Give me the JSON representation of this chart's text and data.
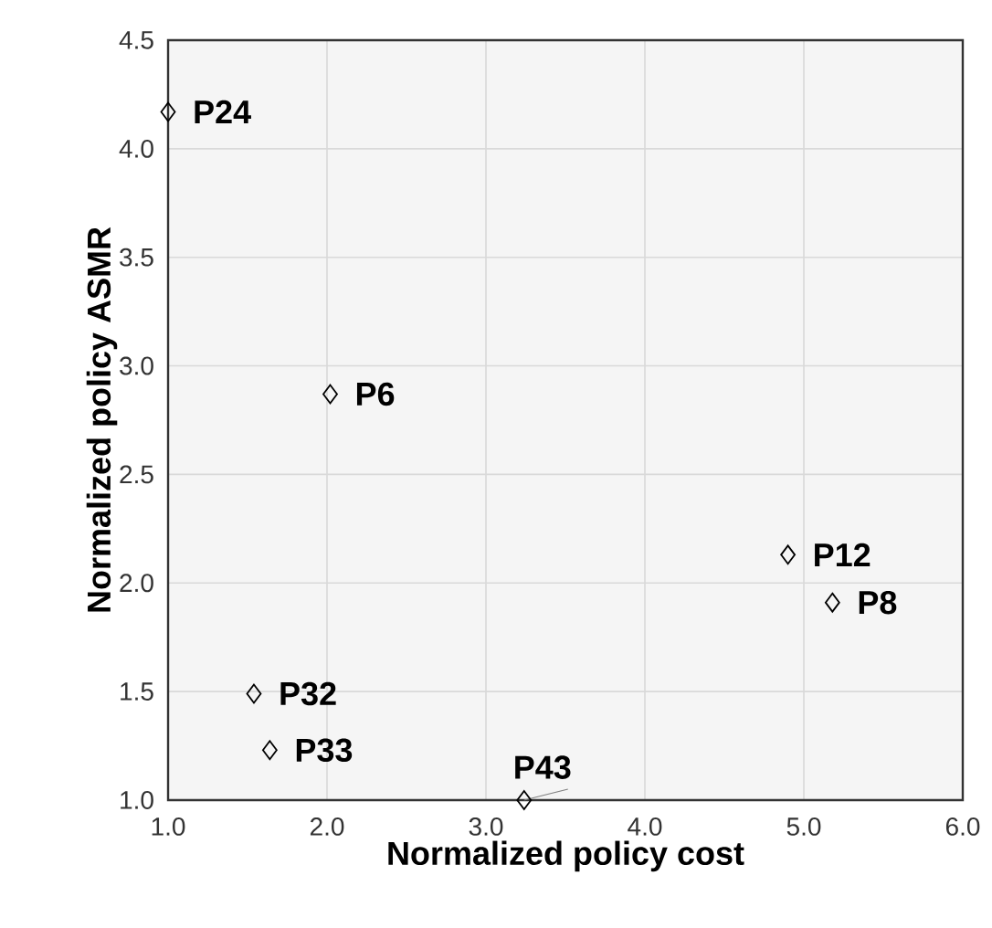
{
  "chart_data": {
    "type": "scatter",
    "xlabel": "Normalized policy cost",
    "ylabel": "Normalized policy ASMR",
    "x": [
      1.0,
      2.02,
      1.54,
      1.64,
      3.24,
      4.9,
      5.18
    ],
    "series": [
      {
        "color": "#000000",
        "values": [
          4.17,
          2.87,
          1.49,
          1.23,
          1.0,
          2.13,
          1.91
        ]
      }
    ],
    "marker": "diamond",
    "grid": true,
    "xlim": [
      1,
      6
    ],
    "ylim": [
      1,
      4.5
    ],
    "xticks": [
      {
        "value": 1,
        "label": "1.0"
      },
      {
        "value": 2,
        "label": "2.0"
      },
      {
        "value": 3,
        "label": "3.0"
      },
      {
        "value": 4,
        "label": "4.0"
      },
      {
        "value": 5,
        "label": "5.0"
      },
      {
        "value": 6,
        "label": "6.0"
      }
    ],
    "yticks": [
      {
        "value": 1,
        "label": "1.0"
      },
      {
        "value": 1.5,
        "label": "1.5"
      },
      {
        "value": 2,
        "label": "2.0"
      },
      {
        "value": 2.5,
        "label": "2.5"
      },
      {
        "value": 3,
        "label": "3.0"
      },
      {
        "value": 3.5,
        "label": "3.5"
      },
      {
        "value": 4,
        "label": "4.0"
      },
      {
        "value": 4.5,
        "label": "4.5"
      }
    ],
    "annotations": [
      {
        "text": "P24",
        "x": 1.0,
        "y": 4.17
      },
      {
        "text": "P6",
        "x": 2.02,
        "y": 2.87
      },
      {
        "text": "P32",
        "x": 1.54,
        "y": 1.49
      },
      {
        "text": "P33",
        "x": 1.64,
        "y": 1.23
      },
      {
        "text": "P43",
        "x": 3.24,
        "y": 1.0
      },
      {
        "text": "P12",
        "x": 4.9,
        "y": 2.13
      },
      {
        "text": "P8",
        "x": 5.18,
        "y": 1.91
      }
    ]
  }
}
